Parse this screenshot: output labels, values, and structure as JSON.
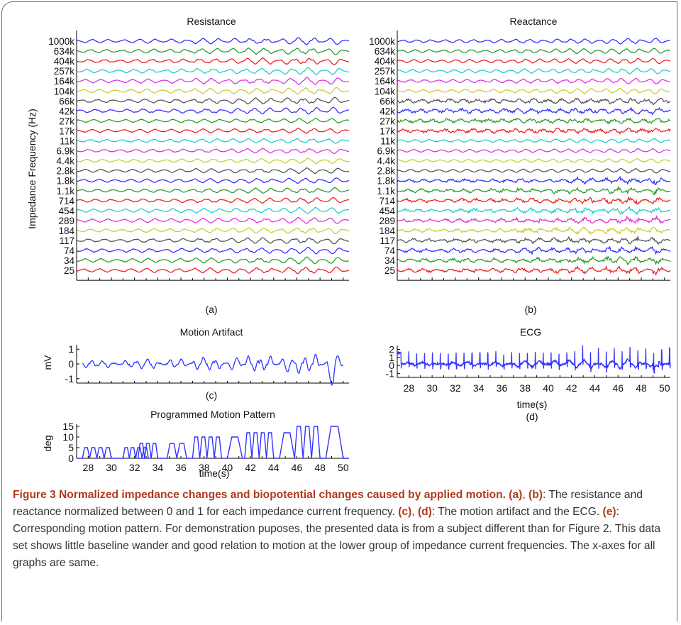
{
  "chart_data": [
    {
      "id": "a",
      "type": "line",
      "title": "Resistance",
      "ylabel": "Impedance Frequency (Hz)",
      "panel_label": "(a)",
      "categories": [
        "1000k",
        "634k",
        "404k",
        "257k",
        "164k",
        "104k",
        "66k",
        "42k",
        "27k",
        "17k",
        "11k",
        "6.9k",
        "4.4k",
        "2.8k",
        "1.8k",
        "1.1k",
        "714",
        "454",
        "289",
        "184",
        "117",
        "74",
        "34",
        "25"
      ],
      "colors": [
        "#3333ff",
        "#2e9a2e",
        "#ee2222",
        "#22cccc",
        "#dd33dd",
        "#cccc33",
        "#555555",
        "#3333ff",
        "#2e9a2e",
        "#ee2222",
        "#22cccc",
        "#dd33dd",
        "#cccc33",
        "#555555",
        "#3333ff",
        "#2e9a2e",
        "#ee2222",
        "#22cccc",
        "#dd33dd",
        "#cccc33",
        "#555555",
        "#3333ff",
        "#2e9a2e",
        "#ee2222"
      ],
      "xlim": [
        27,
        50.5
      ],
      "note": "normalized between 0 and 1 for each impedance current frequency"
    },
    {
      "id": "b",
      "type": "line",
      "title": "Reactance",
      "panel_label": "(b)",
      "categories": [
        "1000k",
        "634k",
        "404k",
        "257k",
        "164k",
        "104k",
        "66k",
        "42k",
        "27k",
        "17k",
        "11k",
        "6.9k",
        "4.4k",
        "2.8k",
        "1.8k",
        "1.1k",
        "714",
        "454",
        "289",
        "184",
        "117",
        "74",
        "34",
        "25"
      ],
      "colors": [
        "#3333ff",
        "#2e9a2e",
        "#ee2222",
        "#22cccc",
        "#dd33dd",
        "#cccc33",
        "#555555",
        "#3333ff",
        "#2e9a2e",
        "#ee2222",
        "#22cccc",
        "#dd33dd",
        "#cccc33",
        "#555555",
        "#3333ff",
        "#2e9a2e",
        "#ee2222",
        "#22cccc",
        "#dd33dd",
        "#cccc33",
        "#555555",
        "#3333ff",
        "#2e9a2e",
        "#ee2222"
      ],
      "xlim": [
        27,
        50.5
      ]
    },
    {
      "id": "c",
      "type": "line",
      "title": "Motion Artifact",
      "ylabel": "mV",
      "panel_label": "(c)",
      "yticks": [
        "1",
        "0",
        "-1"
      ],
      "ylim": [
        -1.3,
        1.3
      ],
      "xlim": [
        27,
        50.5
      ],
      "color": "#3333ff"
    },
    {
      "id": "d",
      "type": "line",
      "title": "ECG",
      "xlabel": "time(s)",
      "panel_label": "(d)",
      "yticks": [
        "2",
        "1",
        "0",
        "-1"
      ],
      "xticks": [
        "28",
        "30",
        "32",
        "34",
        "36",
        "38",
        "40",
        "42",
        "44",
        "46",
        "48",
        "50"
      ],
      "ylim": [
        -1.5,
        2.5
      ],
      "xlim": [
        27,
        50.5
      ],
      "color": "#3333ff"
    },
    {
      "id": "e",
      "type": "line",
      "title": "Programmed Motion Pattern",
      "ylabel": "deg",
      "xlabel": "time(s)",
      "panel_label": "(e)",
      "yticks": [
        "15",
        "10",
        "5",
        "0"
      ],
      "xticks": [
        "28",
        "30",
        "32",
        "34",
        "36",
        "38",
        "40",
        "42",
        "44",
        "46",
        "48",
        "50"
      ],
      "ylim": [
        0,
        16
      ],
      "xlim": [
        27,
        50.5
      ],
      "color": "#3333ff",
      "motion_bursts": [
        {
          "start": 27.5,
          "end": 30.0,
          "amp": 5,
          "cycles": 4
        },
        {
          "start": 31.0,
          "end": 33.2,
          "amp": 5,
          "cycles": 4
        },
        {
          "start": 32.3,
          "end": 34.0,
          "amp": 7,
          "cycles": 3
        },
        {
          "start": 34.8,
          "end": 36.5,
          "amp": 7,
          "cycles": 2
        },
        {
          "start": 37.0,
          "end": 39.5,
          "amp": 10,
          "cycles": 4
        },
        {
          "start": 40.0,
          "end": 41.3,
          "amp": 10,
          "cycles": 1
        },
        {
          "start": 41.5,
          "end": 44.0,
          "amp": 12,
          "cycles": 4
        },
        {
          "start": 44.5,
          "end": 45.8,
          "amp": 12,
          "cycles": 1
        },
        {
          "start": 45.8,
          "end": 48.0,
          "amp": 15,
          "cycles": 3
        },
        {
          "start": 48.5,
          "end": 50.0,
          "amp": 15,
          "cycles": 1
        }
      ]
    }
  ],
  "caption": {
    "title": "Figure 3 Normalized impedance changes and biopotential changes caused by applied motion.",
    "p1_ref1": "(a)",
    "p1_sep1": ", ",
    "p1_ref2": "(b)",
    "p1_text": ": The resistance and reactance normalized between 0 and 1 for each impedance current frequency. ",
    "p2_ref1": "(c)",
    "p2_sep": ", ",
    "p2_ref2": "(d)",
    "p2_text": ": The motion artifact and the ECG. ",
    "p3_ref": "(e)",
    "p3_text": ": Corresponding motion pattern. For demonstration puposes, the presented data is from a subject different than for Figure 2. This data set shows little baseline wander and good relation to motion at the lower group of impedance current frequencies. The x-axes for all graphs are same."
  }
}
